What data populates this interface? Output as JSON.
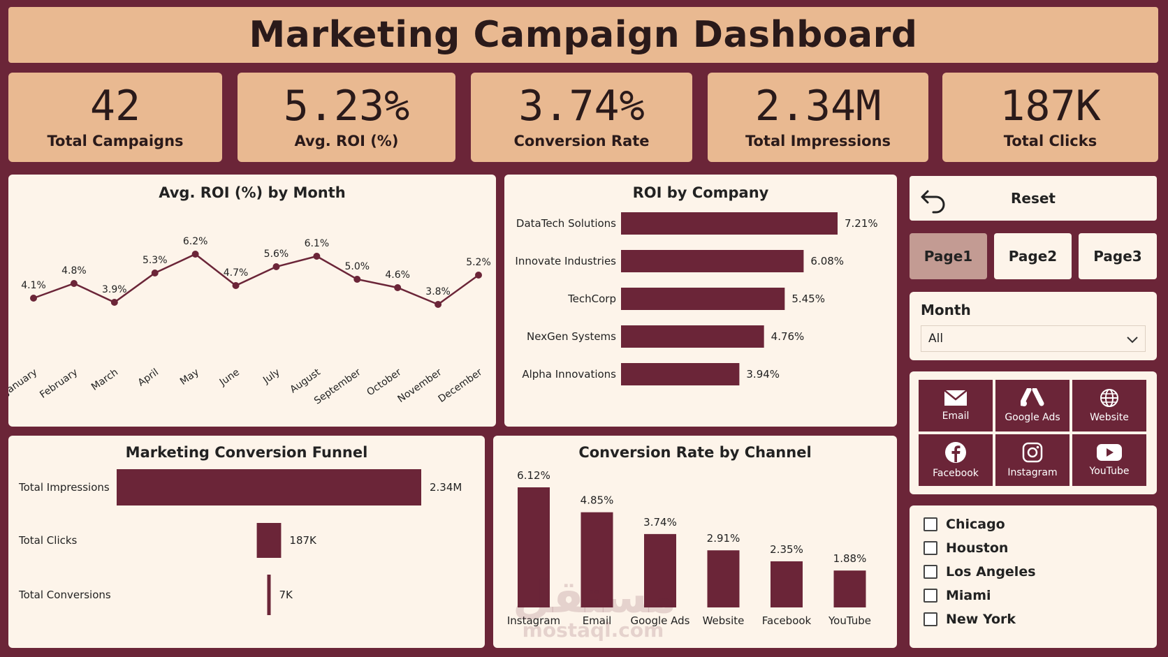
{
  "header": {
    "title": "Marketing Campaign Dashboard"
  },
  "kpis": [
    {
      "value": "42",
      "label": "Total Campaigns"
    },
    {
      "value": "5.23%",
      "label": "Avg. ROI (%)"
    },
    {
      "value": "3.74%",
      "label": "Conversion Rate"
    },
    {
      "value": "2.34M",
      "label": "Total Impressions"
    },
    {
      "value": "187K",
      "label": "Total Clicks"
    }
  ],
  "colors": {
    "background": "#6b2538",
    "accent": "#6b2538",
    "kpi_bg": "#e9b991",
    "panel_bg": "#fdf4ea"
  },
  "roi_month": {
    "title": "Avg. ROI (%) by Month",
    "chart_data": {
      "type": "line",
      "categories": [
        "January",
        "February",
        "March",
        "April",
        "May",
        "June",
        "July",
        "August",
        "September",
        "October",
        "November",
        "December"
      ],
      "values": [
        4.1,
        4.8,
        3.9,
        5.3,
        6.2,
        4.7,
        5.6,
        6.1,
        5.0,
        4.6,
        3.8,
        5.2
      ],
      "labels": [
        "4.1%",
        "4.8%",
        "3.9%",
        "5.3%",
        "6.2%",
        "4.7%",
        "5.6%",
        "6.1%",
        "5.0%",
        "4.6%",
        "3.8%",
        "5.2%"
      ]
    }
  },
  "roi_company": {
    "title": "ROI by Company",
    "chart_data": {
      "type": "bar",
      "categories": [
        "DataTech Solutions",
        "Innovate Industries",
        "TechCorp",
        "NexGen Systems",
        "Alpha Innovations"
      ],
      "values": [
        7.21,
        6.08,
        5.45,
        4.76,
        3.94
      ],
      "labels": [
        "7.21%",
        "6.08%",
        "5.45%",
        "4.76%",
        "3.94%"
      ]
    }
  },
  "funnel": {
    "title": "Marketing Conversion Funnel",
    "chart_data": {
      "type": "bar",
      "categories": [
        "Total Impressions",
        "Total Clicks",
        "Total Conversions"
      ],
      "values": [
        2340000,
        187000,
        7000
      ],
      "labels": [
        "2.34M",
        "187K",
        "7K"
      ]
    }
  },
  "conv_channel": {
    "title": "Conversion Rate by Channel",
    "chart_data": {
      "type": "bar",
      "categories": [
        "Instagram",
        "Email",
        "Google Ads",
        "Website",
        "Facebook",
        "YouTube"
      ],
      "values": [
        6.12,
        4.85,
        3.74,
        2.91,
        2.35,
        1.88
      ],
      "labels": [
        "6.12%",
        "4.85%",
        "3.74%",
        "2.91%",
        "2.35%",
        "1.88%"
      ]
    }
  },
  "controls": {
    "reset_label": "Reset",
    "pages": [
      {
        "label": "Page1",
        "active": true
      },
      {
        "label": "Page2",
        "active": false
      },
      {
        "label": "Page3",
        "active": false
      }
    ],
    "month_filter": {
      "label": "Month",
      "value": "All"
    },
    "channels": [
      {
        "label": "Email",
        "icon": "email-icon"
      },
      {
        "label": "Google Ads",
        "icon": "google-ads-icon"
      },
      {
        "label": "Website",
        "icon": "globe-icon"
      },
      {
        "label": "Facebook",
        "icon": "facebook-icon"
      },
      {
        "label": "Instagram",
        "icon": "instagram-icon"
      },
      {
        "label": "YouTube",
        "icon": "youtube-icon"
      }
    ],
    "cities": [
      "Chicago",
      "Houston",
      "Los Angeles",
      "Miami",
      "New York"
    ]
  },
  "watermark": {
    "arabic": "مستقل",
    "latin": "mostaql.com"
  }
}
